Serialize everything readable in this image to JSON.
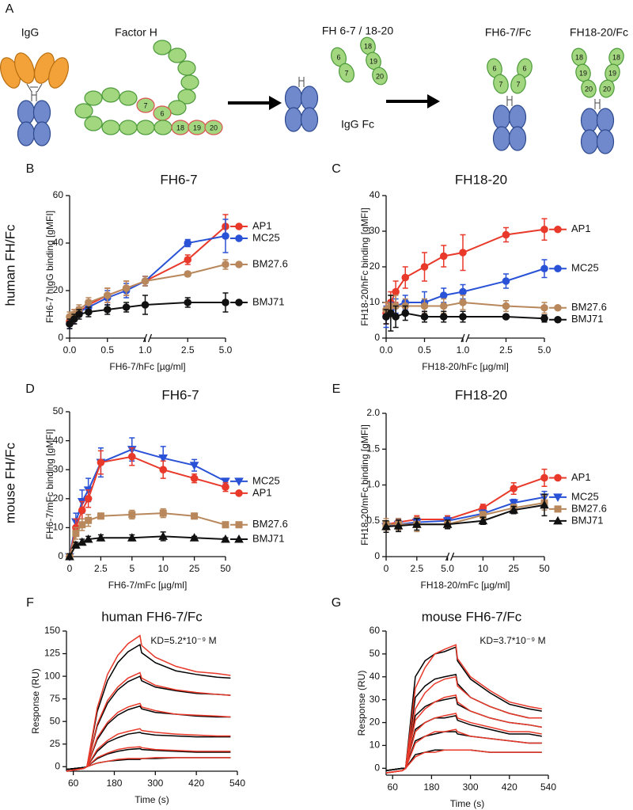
{
  "diagram": {
    "panel_label": "A",
    "igg": "IgG",
    "factor_h": "Factor H",
    "factor_h_domains": [
      "7",
      "6",
      "18",
      "19",
      "20"
    ],
    "fragments": "FH 6-7 / 18-20",
    "fragment_domains_67": [
      "6",
      "7"
    ],
    "fragment_domains_1820": [
      "18",
      "19",
      "20"
    ],
    "fc": "IgG Fc",
    "fh67_fc": "FH6-7/Fc",
    "fh67_fc_domains": [
      "6",
      "7",
      "6",
      "7"
    ],
    "fh1820_fc": "FH18-20/Fc",
    "fh1820_fc_domains": [
      "18",
      "19",
      "20",
      "18",
      "19",
      "20"
    ]
  },
  "row_labels": [
    "human FH/Fc",
    "mouse FH/Fc"
  ],
  "chart_data": [
    {
      "type": "line",
      "panel_label": "B",
      "title": "FH6-7",
      "xlabel": "FH6-7/hFc [µg/ml]",
      "ylabel": "FH6-7 hIgG binding [gMFI]",
      "x": [
        0,
        0.06,
        0.125,
        0.25,
        0.5,
        0.75,
        1,
        2.5,
        5
      ],
      "x_scale": "segmented",
      "x_break": 1,
      "xlim": [
        0,
        5
      ],
      "xticks": [
        {
          "value": 0,
          "label": "0.0"
        },
        0.5,
        {
          "value": 1,
          "label": "1.0"
        },
        2.5,
        {
          "value": 5,
          "label": "5.0"
        }
      ],
      "ylim": [
        0,
        60
      ],
      "yticks": [
        0,
        20,
        40,
        60
      ],
      "series": [
        {
          "name": "AP1",
          "color": "#e8392a",
          "marker": "circle",
          "values": [
            7,
            9,
            11,
            14,
            18,
            21,
            24,
            33,
            47
          ],
          "errors": [
            2,
            3,
            2,
            2,
            3,
            3,
            2,
            2,
            5
          ]
        },
        {
          "name": "MC25",
          "color": "#2a52d6",
          "marker": "circle",
          "values": [
            6,
            8,
            11,
            13,
            17,
            20,
            24,
            40,
            43
          ],
          "errors": [
            2,
            2,
            2,
            2,
            3,
            3,
            2,
            1.5,
            7
          ]
        },
        {
          "name": "BM27.6",
          "color": "#b8885c",
          "marker": "circle",
          "values": [
            9,
            10,
            12,
            15,
            18,
            21,
            24,
            27,
            31
          ],
          "errors": [
            2,
            2,
            2,
            2,
            3,
            3,
            2,
            1,
            2
          ]
        },
        {
          "name": "BMJ71",
          "color": "#111111",
          "marker": "circle",
          "values": [
            6,
            8,
            10,
            11,
            12,
            13,
            14,
            15,
            15
          ],
          "errors": [
            2,
            2,
            2,
            2,
            2,
            2,
            4,
            2,
            4
          ]
        }
      ]
    },
    {
      "type": "line",
      "panel_label": "C",
      "title": "FH18-20",
      "xlabel": "FH18-20/hFc [µg/ml]",
      "ylabel": "FH18-20/hFc binding [gMFI]",
      "x": [
        0,
        0.06,
        0.125,
        0.25,
        0.5,
        0.75,
        1,
        2.5,
        5
      ],
      "x_scale": "segmented",
      "x_break": 1,
      "xlim": [
        0,
        5
      ],
      "xticks": [
        {
          "value": 0,
          "label": "0.0"
        },
        0.5,
        {
          "value": 1,
          "label": "1.0"
        },
        2.5,
        {
          "value": 5,
          "label": "5.0"
        }
      ],
      "ylim": [
        0,
        40
      ],
      "yticks": [
        0,
        10,
        20,
        30,
        40
      ],
      "series": [
        {
          "name": "AP1",
          "color": "#e8392a",
          "marker": "circle",
          "values": [
            7,
            10,
            13,
            17,
            20,
            23,
            24,
            29,
            30.5
          ],
          "errors": [
            3,
            3,
            3,
            3,
            4,
            3,
            5,
            2,
            3
          ]
        },
        {
          "name": "MC25",
          "color": "#2a52d6",
          "marker": "circle",
          "values": [
            6,
            8,
            9,
            10,
            10,
            12,
            13,
            16,
            19.5
          ],
          "errors": [
            3,
            2,
            2,
            2,
            3,
            2,
            2,
            2,
            2.5
          ]
        },
        {
          "name": "BM27.6",
          "color": "#b8885c",
          "marker": "circle",
          "values": [
            8,
            9,
            9,
            9,
            9,
            9,
            10,
            9,
            8.5
          ],
          "errors": [
            2,
            3,
            3,
            2,
            2,
            2,
            2,
            1.5,
            1.5
          ]
        },
        {
          "name": "BMJ71",
          "color": "#111111",
          "marker": "circle",
          "values": [
            6,
            7,
            6,
            7,
            6,
            6,
            6,
            6,
            5.5
          ],
          "errors": [
            2,
            5,
            3,
            2,
            1.5,
            1.5,
            1.5,
            0.5,
            1
          ]
        }
      ]
    },
    {
      "type": "line",
      "panel_label": "D",
      "title": "FH6-7",
      "xlabel": "FH6-7/mFc [µg/ml]",
      "ylabel": "FH6-7/mFc binding [gMFI]",
      "x": [
        0,
        0.5,
        1,
        1.5,
        2.5,
        5,
        10,
        25,
        50
      ],
      "x_scale": "segmented",
      "xlim": [
        0,
        50
      ],
      "xticks": [
        0,
        2.5,
        5,
        10,
        25,
        50
      ],
      "ylim": [
        0,
        50
      ],
      "yticks": [
        0,
        10,
        20,
        30,
        40,
        50
      ],
      "series": [
        {
          "name": "MC25",
          "color": "#2a52d6",
          "marker": "triangle-down",
          "values": [
            0,
            12,
            19,
            23,
            32.5,
            37,
            34,
            31.5,
            26
          ],
          "errors": [
            1,
            3,
            4,
            4,
            5,
            4,
            4,
            2,
            1
          ]
        },
        {
          "name": "AP1",
          "color": "#e8392a",
          "marker": "circle",
          "values": [
            0,
            10,
            16,
            20,
            32.5,
            34.5,
            30,
            27,
            24
          ],
          "errors": [
            1,
            3,
            3,
            3,
            4,
            3,
            3,
            1.5,
            1.5
          ]
        },
        {
          "name": "BM27.6",
          "color": "#b8885c",
          "marker": "square",
          "values": [
            0,
            8,
            11,
            12.5,
            14,
            14.5,
            15,
            14,
            11
          ],
          "errors": [
            1,
            2,
            2,
            2,
            1,
            1.5,
            1.5,
            1,
            1
          ]
        },
        {
          "name": "BMJ71",
          "color": "#111111",
          "marker": "triangle-up",
          "values": [
            0,
            4,
            5,
            6,
            6.5,
            6.5,
            7,
            6.5,
            6
          ],
          "errors": [
            1,
            1,
            1,
            1,
            1,
            1,
            1.5,
            0.5,
            0.5
          ]
        }
      ]
    },
    {
      "type": "line",
      "panel_label": "E",
      "title": "FH18-20",
      "xlabel": "FH18-20/mFc [µg/ml]",
      "ylabel": "FH18-20/mFc binding [gMFI]",
      "x": [
        0,
        1,
        2.5,
        5,
        10,
        25,
        50
      ],
      "x_scale": "segmented",
      "x_break": 5,
      "xlim": [
        0,
        50
      ],
      "xticks": [
        0,
        2.5,
        {
          "value": 5,
          "label": "5.0"
        },
        10,
        25,
        50
      ],
      "ylim": [
        0,
        2
      ],
      "yticks": [
        0,
        0.5,
        {
          "value": 1,
          "label": "1.0"
        },
        1.5,
        {
          "value": 2,
          "label": "2.0"
        }
      ],
      "series": [
        {
          "name": "AP1",
          "color": "#e8392a",
          "marker": "circle",
          "values": [
            0.45,
            0.48,
            0.52,
            0.52,
            0.68,
            0.95,
            1.1
          ],
          "errors": [
            0.05,
            0.05,
            0.05,
            0.05,
            0.05,
            0.08,
            0.12
          ]
        },
        {
          "name": "MC25",
          "color": "#2a52d6",
          "marker": "triangle-down",
          "values": [
            0.42,
            0.45,
            0.48,
            0.5,
            0.6,
            0.75,
            0.83
          ],
          "errors": [
            0.08,
            0.08,
            0.06,
            0.05,
            0.05,
            0.05,
            0.08
          ]
        },
        {
          "name": "BM27.6",
          "color": "#b8885c",
          "marker": "square",
          "values": [
            0.45,
            0.45,
            0.45,
            0.45,
            0.58,
            0.68,
            0.75
          ],
          "errors": [
            0.08,
            0.08,
            0.1,
            0.05,
            0.05,
            0.05,
            0.1
          ]
        },
        {
          "name": "BMJ71",
          "color": "#111111",
          "marker": "triangle-up",
          "values": [
            0.42,
            0.43,
            0.45,
            0.45,
            0.5,
            0.65,
            0.72
          ],
          "errors": [
            0.08,
            0.08,
            0.08,
            0.06,
            0.05,
            0.05,
            0.15
          ]
        }
      ]
    },
    {
      "type": "line",
      "panel_label": "F",
      "title": "human FH6-7/Fc",
      "xlabel": "Time (s)",
      "ylabel": "Response (RU)",
      "annotation": "KD=5.2*10⁻⁹ M",
      "x": [
        40,
        90,
        100,
        130,
        160,
        190,
        220,
        255,
        260,
        300,
        360,
        420,
        480,
        520
      ],
      "xlim": [
        40,
        540
      ],
      "xticks": [
        60,
        180,
        300,
        420,
        540
      ],
      "ylim": [
        -5,
        150
      ],
      "yticks": [
        0,
        25,
        50,
        75,
        100,
        125,
        150
      ],
      "series": [
        {
          "color": "#000000",
          "values": [
            -3,
            -1,
            0,
            61,
            95,
            115,
            127,
            135,
            126,
            115,
            106,
            102,
            99,
            98
          ]
        },
        {
          "color": "#000000",
          "values": [
            -3,
            -1,
            0,
            45,
            70,
            85,
            94,
            100,
            95,
            88,
            84,
            81,
            80,
            79
          ]
        },
        {
          "color": "#000000",
          "values": [
            -3,
            -1,
            0,
            30,
            47,
            57,
            63,
            67,
            64,
            60,
            58,
            56,
            55,
            55
          ]
        },
        {
          "color": "#000000",
          "values": [
            -3,
            -1,
            0,
            17,
            27,
            32,
            36,
            38,
            37,
            35,
            34,
            33,
            33,
            33
          ]
        },
        {
          "color": "#000000",
          "values": [
            -3,
            -1,
            0,
            9,
            14,
            17,
            19,
            20,
            19,
            18,
            17,
            16,
            16,
            16
          ]
        },
        {
          "color": "#000000",
          "values": [
            -3,
            -1,
            0,
            4,
            6,
            7,
            8,
            8,
            9,
            9,
            10,
            10,
            10,
            10
          ]
        },
        {
          "color": "#e8392a",
          "values": [
            -5,
            -2,
            0,
            65,
            102,
            123,
            136,
            145,
            134,
            121,
            111,
            105,
            103,
            101
          ]
        },
        {
          "color": "#e8392a",
          "values": [
            -5,
            -2,
            0,
            47,
            73,
            88,
            98,
            104,
            98,
            90,
            85,
            82,
            80,
            79
          ]
        },
        {
          "color": "#e8392a",
          "values": [
            -5,
            -2,
            0,
            32,
            49,
            60,
            66,
            70,
            66,
            62,
            58,
            57,
            56,
            55
          ]
        },
        {
          "color": "#e8392a",
          "values": [
            -5,
            -2,
            0,
            19,
            29,
            36,
            39,
            42,
            40,
            38,
            36,
            35,
            34,
            34
          ]
        },
        {
          "color": "#e8392a",
          "values": [
            -5,
            -2,
            0,
            10,
            15,
            19,
            21,
            22,
            21,
            19,
            18,
            17,
            17,
            17
          ]
        },
        {
          "color": "#e8392a",
          "values": [
            -5,
            -2,
            0,
            4,
            6,
            8,
            9,
            9,
            9,
            10,
            10,
            10,
            10,
            10
          ]
        }
      ]
    },
    {
      "type": "line",
      "panel_label": "G",
      "title": "mouse FH6-7/Fc",
      "xlabel": "Time (s)",
      "ylabel": "Response (RU)",
      "annotation": "KD=3.7*10⁻⁹ M",
      "x": [
        40,
        90,
        100,
        130,
        160,
        190,
        220,
        255,
        260,
        300,
        360,
        420,
        480,
        520
      ],
      "xlim": [
        40,
        540
      ],
      "xticks": [
        60,
        180,
        300,
        420,
        540
      ],
      "ylim": [
        -3,
        60
      ],
      "yticks": [
        0,
        10,
        20,
        30,
        40,
        50,
        60
      ],
      "series": [
        {
          "color": "#000000",
          "values": [
            -1,
            0,
            0,
            40,
            47,
            50,
            51,
            53,
            47,
            39,
            33,
            28,
            26,
            25
          ]
        },
        {
          "color": "#000000",
          "values": [
            -1,
            0,
            0,
            31,
            36,
            39,
            40,
            41,
            37,
            31,
            27,
            24,
            22,
            22
          ]
        },
        {
          "color": "#000000",
          "values": [
            -1,
            0,
            0,
            23,
            27,
            29,
            30,
            31,
            28,
            25,
            22,
            20,
            19,
            18
          ]
        },
        {
          "color": "#000000",
          "values": [
            -1,
            0,
            0,
            17,
            20,
            22,
            22,
            23,
            21,
            19,
            17,
            15,
            15,
            14
          ]
        },
        {
          "color": "#000000",
          "values": [
            -1,
            0,
            0,
            12,
            14,
            15,
            16,
            16,
            15,
            14,
            13,
            12,
            11,
            11
          ]
        },
        {
          "color": "#000000",
          "values": [
            -1,
            0,
            0,
            6,
            7,
            8,
            8,
            8,
            8,
            8,
            7,
            7,
            7,
            7
          ]
        },
        {
          "color": "#e8392a",
          "values": [
            -2,
            -1,
            0,
            35,
            44,
            50,
            52,
            54,
            48,
            40,
            34,
            29,
            27,
            26
          ]
        },
        {
          "color": "#e8392a",
          "values": [
            -2,
            -1,
            0,
            26,
            33,
            37,
            39,
            40,
            36,
            31,
            27,
            24,
            22,
            22
          ]
        },
        {
          "color": "#e8392a",
          "values": [
            -2,
            -1,
            0,
            21,
            26,
            29,
            31,
            32,
            29,
            25,
            22,
            20,
            19,
            18
          ]
        },
        {
          "color": "#e8392a",
          "values": [
            -2,
            -1,
            0,
            16,
            20,
            22,
            23,
            24,
            22,
            20,
            18,
            16,
            16,
            15
          ]
        },
        {
          "color": "#e8392a",
          "values": [
            -2,
            -1,
            0,
            11,
            14,
            16,
            16,
            17,
            16,
            14,
            13,
            12,
            11,
            11
          ]
        },
        {
          "color": "#e8392a",
          "values": [
            -2,
            -1,
            0,
            5,
            7,
            7,
            8,
            8,
            8,
            8,
            7,
            7,
            7,
            7
          ]
        }
      ]
    }
  ]
}
